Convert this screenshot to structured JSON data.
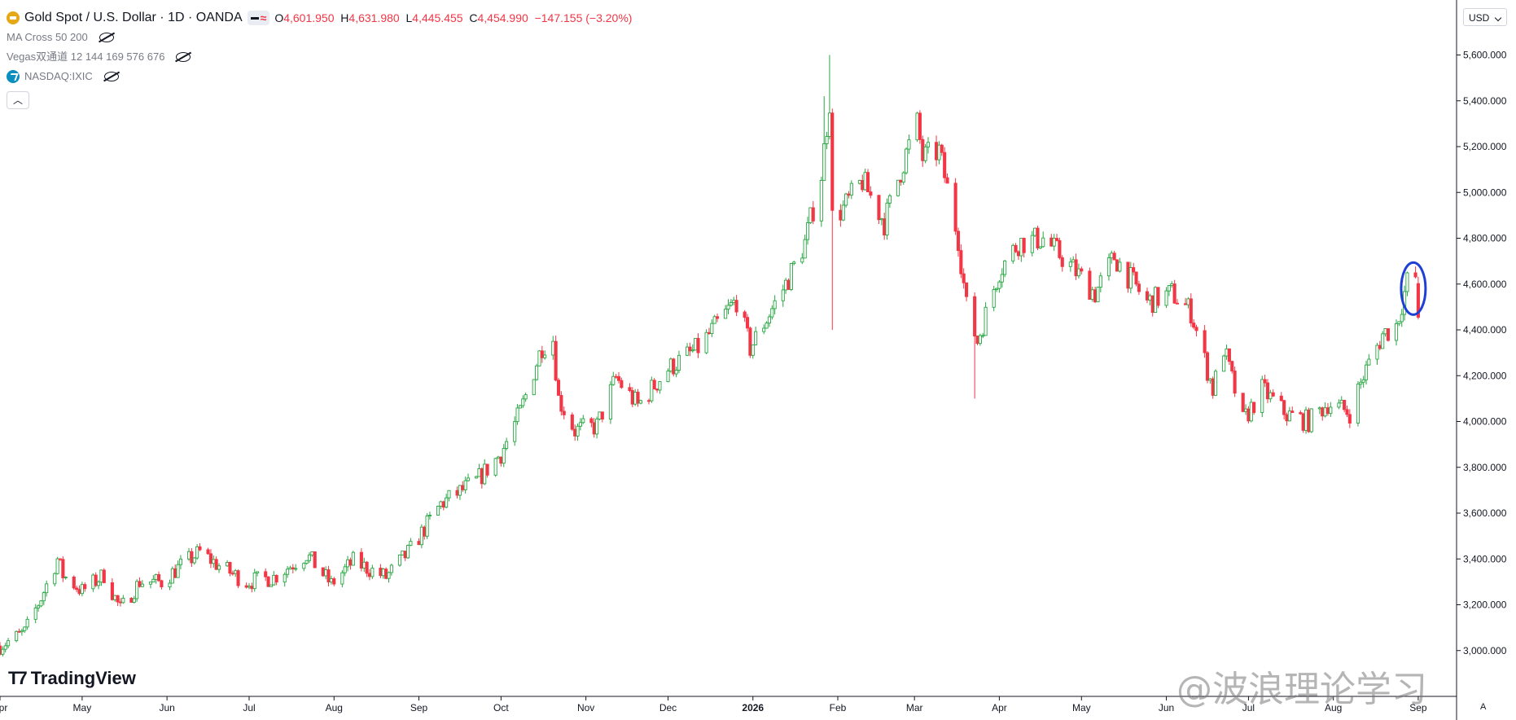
{
  "header": {
    "symbol_title": "Gold Spot / U.S. Dollar · 1D · OANDA",
    "open_key": "O",
    "open": "4,601.950",
    "high_key": "H",
    "high": "4,631.980",
    "low_key": "L",
    "low": "4,445.455",
    "close_key": "C",
    "close": "4,454.990",
    "change": "−147.155 (−3.20%)"
  },
  "indicators": [
    {
      "label": "MA Cross 50 200",
      "icon": "eye-off-icon"
    },
    {
      "label": "Vegas双通道 12 144 169 576 676",
      "icon": "eye-off-icon"
    },
    {
      "label": "NASDAQ:IXIC",
      "icon": "eye-off-icon"
    }
  ],
  "currency_button": "USD",
  "brand": "TradingView",
  "watermark": "@波浪理论学习",
  "auto_scale": "A",
  "colors": {
    "up": "#26a641",
    "up_fill": "#ffffff",
    "down": "#f23645",
    "highlight": "#1e3fd6",
    "axis": "#131722",
    "grid": "#e0e3eb"
  },
  "chart_data": {
    "type": "candlestick",
    "title": "Gold Spot / U.S. Dollar · 1D · OANDA",
    "y_ticks": [
      3000,
      3200,
      3400,
      3600,
      3800,
      4000,
      4200,
      4400,
      4600,
      4800,
      5000,
      5200,
      5400,
      5600
    ],
    "y_tick_labels": [
      "3,000.000",
      "3,200.000",
      "3,400.000",
      "3,600.000",
      "3,800.000",
      "4,000.000",
      "4,200.000",
      "4,400.000",
      "4,600.000",
      "4,800.000",
      "5,000.000",
      "5,200.000",
      "5,400.000",
      "5,600.000"
    ],
    "ylim": [
      2800,
      5840
    ],
    "x_range": [
      "2025-04-01",
      "2026-09-15"
    ],
    "x_ticks": [
      {
        "date": "2025-04-01",
        "label": "Apr"
      },
      {
        "date": "2025-05-01",
        "label": "May"
      },
      {
        "date": "2025-06-01",
        "label": "Jun"
      },
      {
        "date": "2025-07-01",
        "label": "Jul"
      },
      {
        "date": "2025-08-01",
        "label": "Aug"
      },
      {
        "date": "2025-09-01",
        "label": "Sep"
      },
      {
        "date": "2025-10-01",
        "label": "Oct"
      },
      {
        "date": "2025-11-01",
        "label": "Nov"
      },
      {
        "date": "2025-12-01",
        "label": "Dec"
      },
      {
        "date": "2026-01-01",
        "label": "2026"
      },
      {
        "date": "2026-02-01",
        "label": "Feb"
      },
      {
        "date": "2026-03-01",
        "label": "Mar"
      },
      {
        "date": "2026-04-01",
        "label": "Apr"
      },
      {
        "date": "2026-05-01",
        "label": "May"
      },
      {
        "date": "2026-06-01",
        "label": "Jun"
      },
      {
        "date": "2026-07-01",
        "label": "Jul"
      },
      {
        "date": "2026-08-01",
        "label": "Aug"
      },
      {
        "date": "2026-09-01",
        "label": "Sep"
      }
    ],
    "close_path": [
      [
        "2025-04-01",
        3020
      ],
      [
        "2025-04-10",
        3080
      ],
      [
        "2025-04-16",
        3230
      ],
      [
        "2025-04-22",
        3400
      ],
      [
        "2025-04-24",
        3330
      ],
      [
        "2025-05-01",
        3260
      ],
      [
        "2025-05-09",
        3330
      ],
      [
        "2025-05-15",
        3180
      ],
      [
        "2025-05-22",
        3300
      ],
      [
        "2025-05-30",
        3300
      ],
      [
        "2025-06-05",
        3360
      ],
      [
        "2025-06-13",
        3430
      ],
      [
        "2025-06-20",
        3370
      ],
      [
        "2025-06-30",
        3300
      ],
      [
        "2025-07-10",
        3320
      ],
      [
        "2025-07-22",
        3420
      ],
      [
        "2025-07-31",
        3290
      ],
      [
        "2025-08-08",
        3390
      ],
      [
        "2025-08-20",
        3320
      ],
      [
        "2025-08-29",
        3440
      ],
      [
        "2025-09-09",
        3640
      ],
      [
        "2025-09-22",
        3740
      ],
      [
        "2025-10-01",
        3860
      ],
      [
        "2025-10-08",
        4040
      ],
      [
        "2025-10-16",
        4330
      ],
      [
        "2025-10-20",
        4360
      ],
      [
        "2025-10-22",
        4100
      ],
      [
        "2025-10-28",
        3960
      ],
      [
        "2025-11-05",
        3980
      ],
      [
        "2025-11-12",
        4190
      ],
      [
        "2025-11-20",
        4070
      ],
      [
        "2025-12-01",
        4230
      ],
      [
        "2025-12-12",
        4320
      ],
      [
        "2025-12-26",
        4530
      ],
      [
        "2025-12-31",
        4320
      ],
      [
        "2026-01-13",
        4600
      ],
      [
        "2026-01-20",
        4780
      ],
      [
        "2026-01-26",
        5080
      ],
      [
        "2026-01-29",
        5400
      ],
      [
        "2026-01-30",
        4890
      ],
      [
        "2026-02-03",
        4930
      ],
      [
        "2026-02-10",
        5050
      ],
      [
        "2026-02-18",
        4870
      ],
      [
        "2026-02-26",
        5170
      ],
      [
        "2026-03-02",
        5300
      ],
      [
        "2026-03-04",
        5150
      ],
      [
        "2026-03-10",
        5180
      ],
      [
        "2026-03-17",
        4800
      ],
      [
        "2026-03-20",
        4500
      ],
      [
        "2026-03-24",
        4350
      ],
      [
        "2026-04-01",
        4660
      ],
      [
        "2026-04-08",
        4780
      ],
      [
        "2026-04-17",
        4800
      ],
      [
        "2026-04-27",
        4680
      ],
      [
        "2026-05-06",
        4560
      ],
      [
        "2026-05-13",
        4720
      ],
      [
        "2026-05-25",
        4520
      ],
      [
        "2026-06-03",
        4560
      ],
      [
        "2026-06-10",
        4480
      ],
      [
        "2026-06-18",
        4140
      ],
      [
        "2026-06-22",
        4320
      ],
      [
        "2026-06-29",
        4000
      ],
      [
        "2026-07-06",
        4140
      ],
      [
        "2026-07-15",
        4030
      ],
      [
        "2026-07-23",
        4000
      ],
      [
        "2026-07-30",
        4080
      ],
      [
        "2026-08-07",
        4040
      ],
      [
        "2026-08-12",
        4200
      ],
      [
        "2026-08-19",
        4380
      ],
      [
        "2026-08-24",
        4420
      ],
      [
        "2026-08-28",
        4610
      ],
      [
        "2026-08-31",
        4630
      ]
    ],
    "spikes": [
      {
        "date": "2026-01-29",
        "high": 5600
      },
      {
        "date": "2026-01-30",
        "low": 4400
      },
      {
        "date": "2026-03-23",
        "low": 4100
      },
      {
        "date": "2026-01-27",
        "high": 5420
      }
    ],
    "last_bar": {
      "date": "2026-09-01",
      "open": 4601.95,
      "high": 4631.98,
      "low": 4445.455,
      "close": 4454.99
    },
    "grid": false,
    "annotation": {
      "type": "ellipse",
      "date": "2026-09-01",
      "center": 4580,
      "color": "#1e3fd6"
    }
  }
}
